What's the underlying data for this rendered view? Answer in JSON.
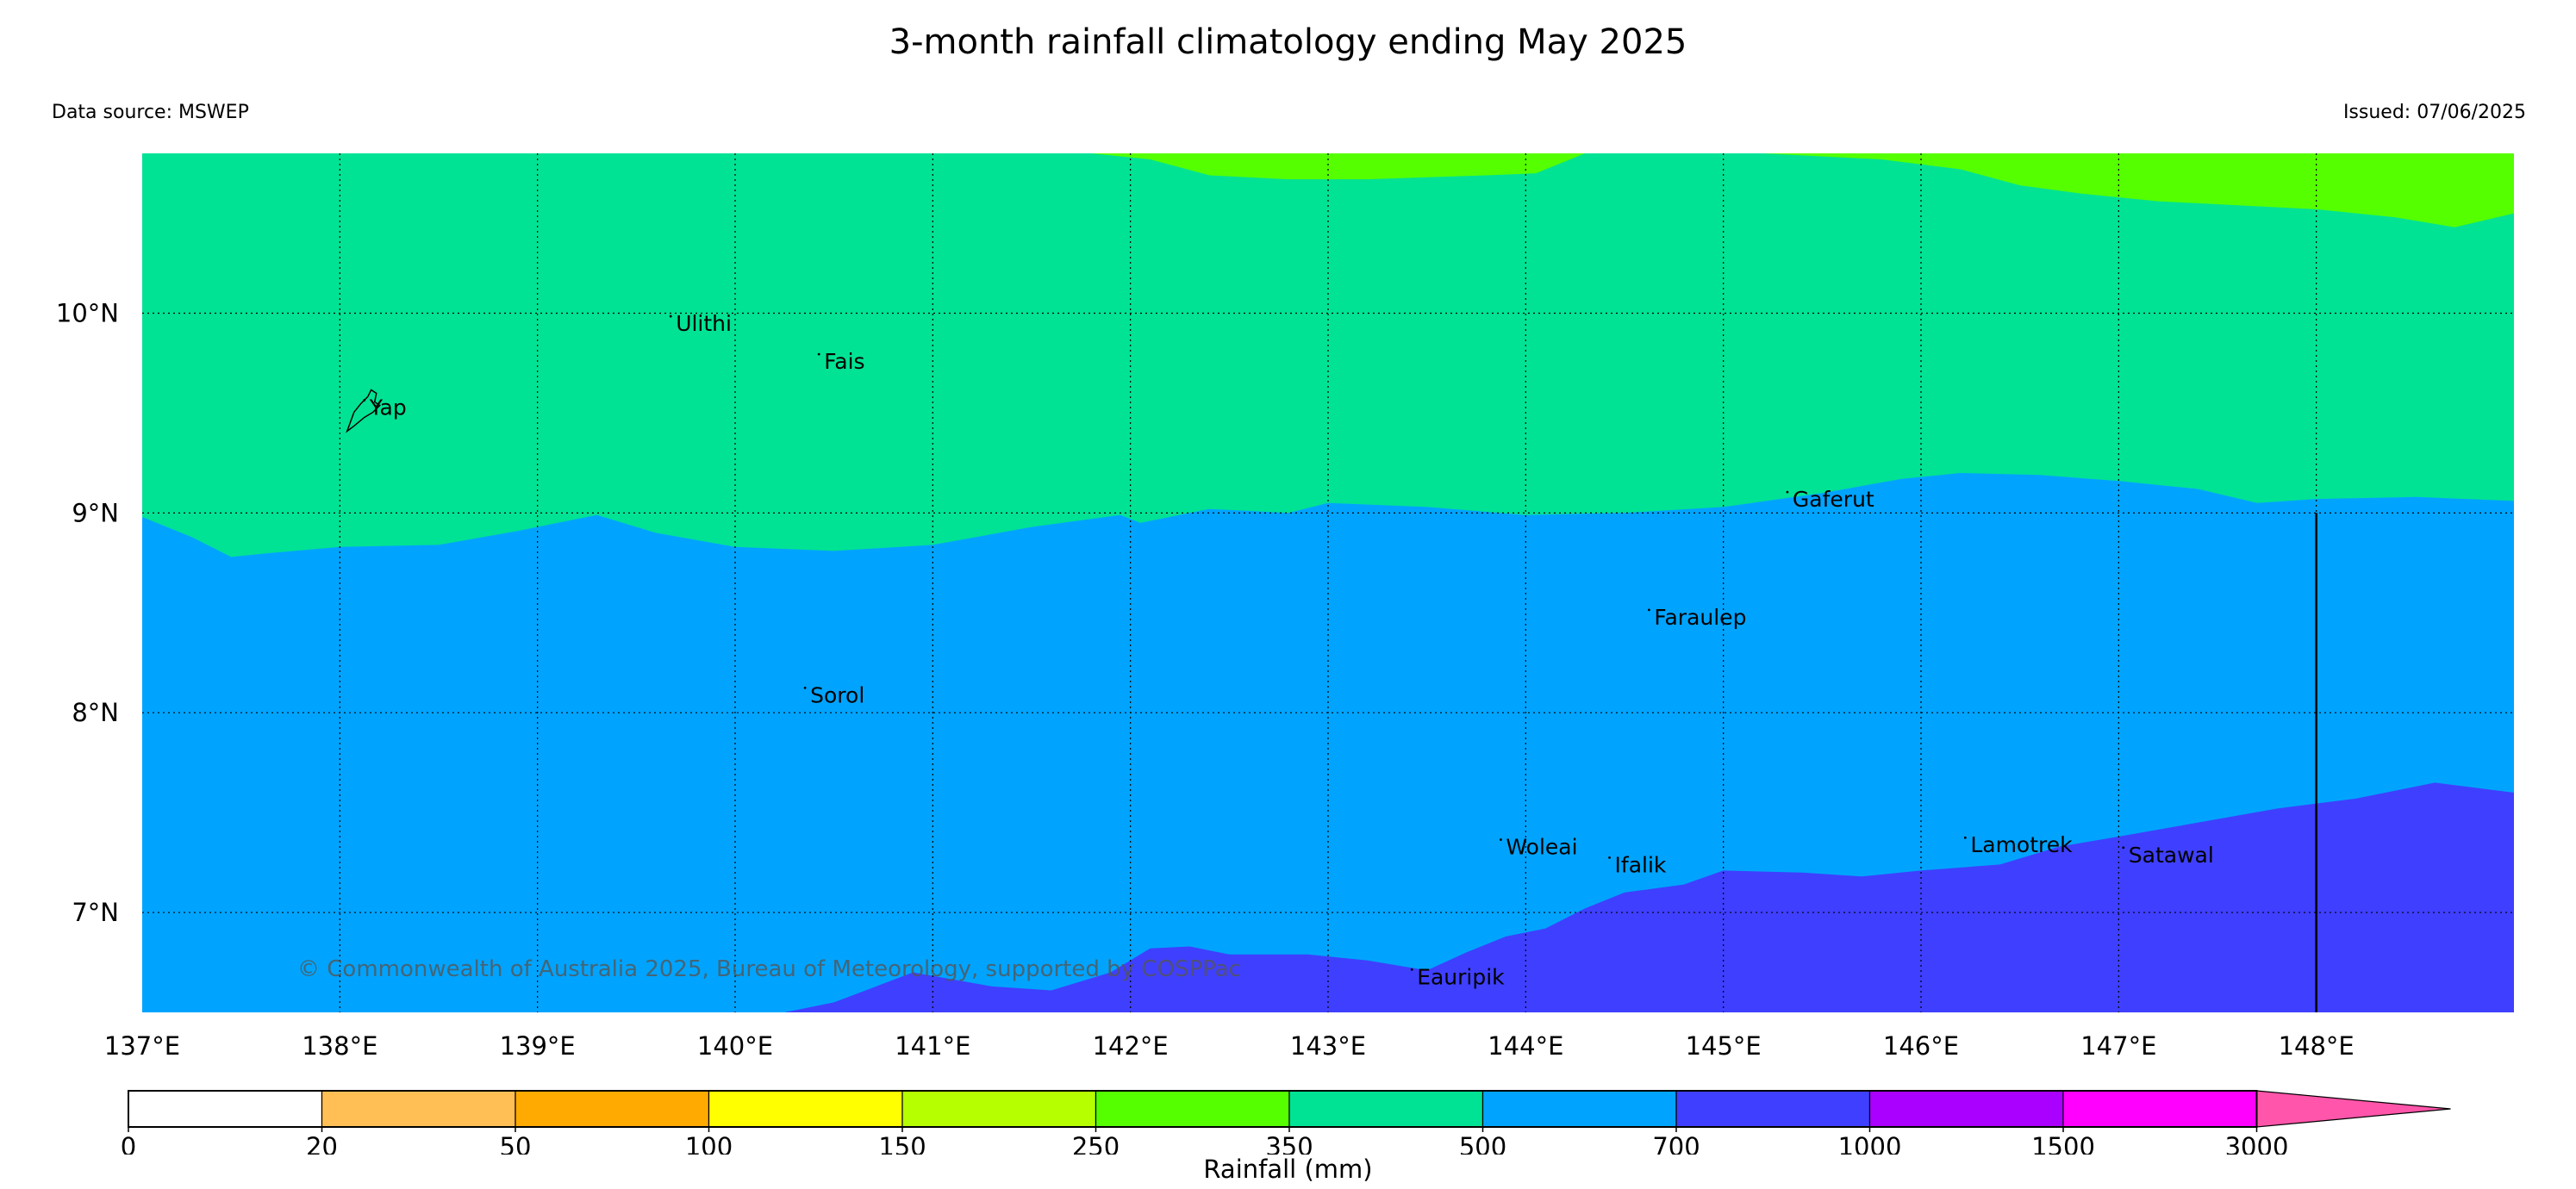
{
  "title": "3-month rainfall climatology ending May 2025",
  "data_source": "Data source: MSWEP",
  "issued": "Issued: 07/06/2025",
  "copyright": "© Commonwealth of Australia 2025, Bureau of Meteorology, supported by COSPPac",
  "colors": {
    "band_250_350": "#55ff00",
    "band_350_500": "#00e394",
    "band_500_700": "#00a4ff",
    "band_700_1000": "#3f3fff",
    "grid": "#000000"
  },
  "map": {
    "lon_range": [
      137.0,
      149.0
    ],
    "lat_range": [
      6.5,
      10.8
    ],
    "lon_ticks": [
      {
        "value": 137,
        "label": "137°E"
      },
      {
        "value": 138,
        "label": "138°E"
      },
      {
        "value": 139,
        "label": "139°E"
      },
      {
        "value": 140,
        "label": "140°E"
      },
      {
        "value": 141,
        "label": "141°E"
      },
      {
        "value": 142,
        "label": "142°E"
      },
      {
        "value": 143,
        "label": "143°E"
      },
      {
        "value": 144,
        "label": "144°E"
      },
      {
        "value": 145,
        "label": "145°E"
      },
      {
        "value": 146,
        "label": "146°E"
      },
      {
        "value": 147,
        "label": "147°E"
      },
      {
        "value": 148,
        "label": "148°E"
      }
    ],
    "lat_ticks": [
      {
        "value": 10,
        "label": "10°N"
      },
      {
        "value": 9,
        "label": "9°N"
      },
      {
        "value": 8,
        "label": "8°N"
      },
      {
        "value": 7,
        "label": "7°N"
      }
    ],
    "places": [
      {
        "name": "Ulithi",
        "lon": 139.7,
        "lat": 9.95
      },
      {
        "name": "Fais",
        "lon": 140.45,
        "lat": 9.76
      },
      {
        "name": "Yap",
        "lon": 138.15,
        "lat": 9.53
      },
      {
        "name": "Gaferut",
        "lon": 145.35,
        "lat": 9.07
      },
      {
        "name": "Faraulep",
        "lon": 144.65,
        "lat": 8.48
      },
      {
        "name": "Sorol",
        "lon": 140.38,
        "lat": 8.09
      },
      {
        "name": "Woleai",
        "lon": 143.9,
        "lat": 7.33
      },
      {
        "name": "Ifalik",
        "lon": 144.45,
        "lat": 7.24
      },
      {
        "name": "Lamotrek",
        "lon": 146.25,
        "lat": 7.34
      },
      {
        "name": "Satawal",
        "lon": 147.05,
        "lat": 7.29
      },
      {
        "name": "Eauripik",
        "lon": 143.45,
        "lat": 6.68
      }
    ],
    "boundary_500_700": [
      [
        137.0,
        8.98
      ],
      [
        137.25,
        8.88
      ],
      [
        137.45,
        8.78
      ],
      [
        137.65,
        8.8
      ],
      [
        138.0,
        8.83
      ],
      [
        138.5,
        8.84
      ],
      [
        138.9,
        8.91
      ],
      [
        139.3,
        8.99
      ],
      [
        139.6,
        8.9
      ],
      [
        140.0,
        8.83
      ],
      [
        140.5,
        8.81
      ],
      [
        141.0,
        8.84
      ],
      [
        141.5,
        8.93
      ],
      [
        141.95,
        8.99
      ],
      [
        142.05,
        8.95
      ],
      [
        142.4,
        9.02
      ],
      [
        142.8,
        9.0
      ],
      [
        143.0,
        9.05
      ],
      [
        143.5,
        9.03
      ],
      [
        144.0,
        8.99
      ],
      [
        144.5,
        9.0
      ],
      [
        145.0,
        9.03
      ],
      [
        145.5,
        9.1
      ],
      [
        145.9,
        9.17
      ],
      [
        146.2,
        9.2
      ],
      [
        146.6,
        9.19
      ],
      [
        147.0,
        9.16
      ],
      [
        147.4,
        9.12
      ],
      [
        147.7,
        9.05
      ],
      [
        148.0,
        9.07
      ],
      [
        148.5,
        9.08
      ],
      [
        149.0,
        9.06
      ]
    ],
    "boundary_700_1000": [
      [
        140.25,
        6.5
      ],
      [
        140.5,
        6.55
      ],
      [
        140.9,
        6.7
      ],
      [
        141.3,
        6.63
      ],
      [
        141.6,
        6.61
      ],
      [
        141.9,
        6.7
      ],
      [
        142.1,
        6.82
      ],
      [
        142.3,
        6.83
      ],
      [
        142.5,
        6.79
      ],
      [
        142.9,
        6.79
      ],
      [
        143.2,
        6.76
      ],
      [
        143.5,
        6.71
      ],
      [
        143.7,
        6.8
      ],
      [
        143.9,
        6.88
      ],
      [
        144.1,
        6.92
      ],
      [
        144.3,
        7.02
      ],
      [
        144.5,
        7.1
      ],
      [
        144.8,
        7.14
      ],
      [
        145.0,
        7.21
      ],
      [
        145.4,
        7.2
      ],
      [
        145.7,
        7.18
      ],
      [
        146.0,
        7.21
      ],
      [
        146.4,
        7.24
      ],
      [
        146.7,
        7.33
      ],
      [
        147.0,
        7.38
      ],
      [
        147.4,
        7.45
      ],
      [
        147.8,
        7.52
      ],
      [
        148.2,
        7.57
      ],
      [
        148.6,
        7.65
      ],
      [
        149.0,
        7.6
      ]
    ],
    "boundary_250_350": [
      [
        141.8,
        10.8
      ],
      [
        142.1,
        10.77
      ],
      [
        142.4,
        10.69
      ],
      [
        142.8,
        10.67
      ],
      [
        143.2,
        10.67
      ],
      [
        143.5,
        10.68
      ],
      [
        143.8,
        10.69
      ],
      [
        144.05,
        10.7
      ],
      [
        144.3,
        10.8
      ],
      [
        145.2,
        10.8
      ],
      [
        145.8,
        10.77
      ],
      [
        146.2,
        10.72
      ],
      [
        146.5,
        10.64
      ],
      [
        146.8,
        10.6
      ],
      [
        147.2,
        10.56
      ],
      [
        147.6,
        10.54
      ],
      [
        148.0,
        10.52
      ],
      [
        148.4,
        10.48
      ],
      [
        148.7,
        10.43
      ],
      [
        149.0,
        10.5
      ]
    ]
  },
  "colorbar": {
    "label": "Rainfall (mm)",
    "ticks": [
      "0",
      "20",
      "50",
      "100",
      "150",
      "250",
      "350",
      "500",
      "700",
      "1000",
      "1500",
      "3000"
    ],
    "colors": [
      "#ffffff",
      "#ffbf55",
      "#ffaa00",
      "#ffff00",
      "#b5ff00",
      "#55ff00",
      "#00e394",
      "#00a4ff",
      "#3f3fff",
      "#aa00ff",
      "#ff00ff",
      "#ff55aa"
    ]
  }
}
